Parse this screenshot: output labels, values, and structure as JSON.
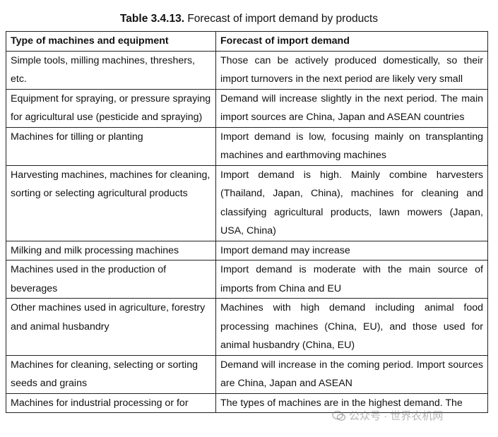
{
  "caption": {
    "number": "Table 3.4.13.",
    "text": " Forecast of import demand by products"
  },
  "table": {
    "headers": [
      "Type of machines and equipment",
      "Forecast of import demand"
    ],
    "rows": [
      {
        "type": "Simple tools, milling machines, threshers, etc.",
        "forecast": "Those can be actively produced domestically, so their import turnovers in the next period are likely very small"
      },
      {
        "type": "Equipment for spraying, or pressure spraying for agricultural use (pesticide and spraying)",
        "forecast": "Demand will increase slightly in the next period. The main import sources are China, Japan and ASEAN countries"
      },
      {
        "type": "Machines for tilling or planting",
        "forecast": "Import demand is low, focusing mainly on transplanting machines and earthmoving machines"
      },
      {
        "type": "Harvesting machines, machines for cleaning, sorting or selecting agricultural products",
        "forecast": "Import demand is high. Mainly combine harvesters (Thailand, Japan, China), machines for cleaning and classifying agricultural products, lawn mowers (Japan, USA, China)"
      },
      {
        "type": "Milking and milk processing machines",
        "forecast": "Import demand may increase"
      },
      {
        "type": "Machines used in the production of beverages",
        "forecast": "Import demand is moderate with the main source of imports from China and EU"
      },
      {
        "type": "Other machines used in agriculture, forestry and animal husbandry",
        "forecast": "Machines with high demand including animal food processing machines (China, EU), and those used for animal husbandry (China, EU)"
      },
      {
        "type": "Machines for cleaning, selecting or sorting seeds and grains",
        "forecast": "Demand will increase in the coming period. Import sources are China, Japan and ASEAN"
      },
      {
        "type": "Machines for industrial processing or for",
        "forecast": "The types of machines are in the highest demand. The"
      }
    ]
  },
  "watermark": {
    "text": "公众号 · 世界农机网",
    "icon": "wechat-icon"
  }
}
